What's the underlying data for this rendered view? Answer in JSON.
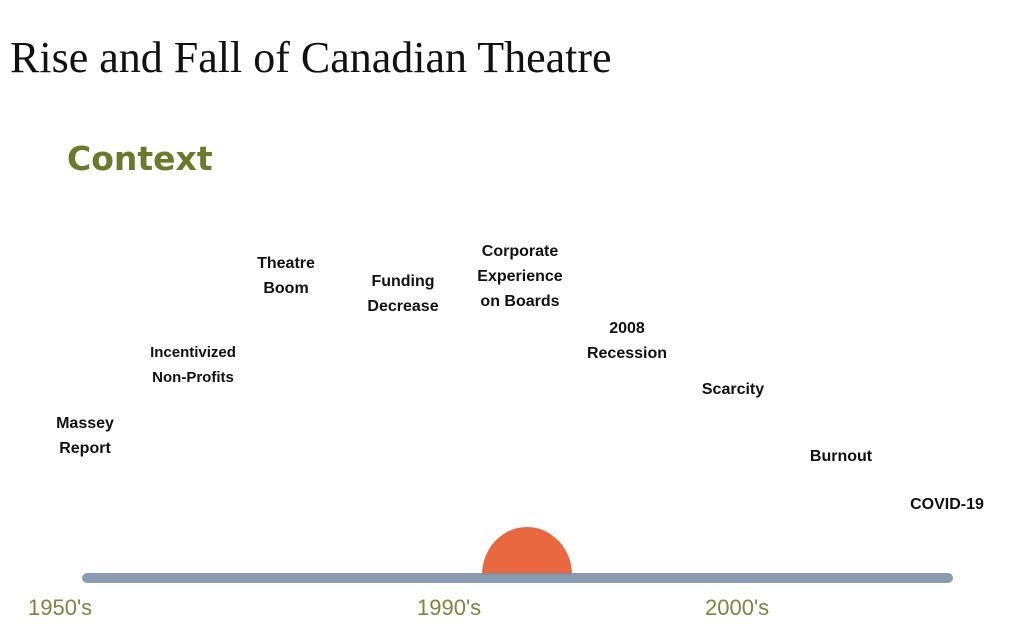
{
  "title": "Rise and Fall of Canadian Theatre",
  "section": "Context",
  "events": [
    {
      "lines": [
        "Massey",
        "Report"
      ]
    },
    {
      "lines": [
        "Incentivized",
        "Non-Profits"
      ]
    },
    {
      "lines": [
        "Theatre",
        "Boom"
      ]
    },
    {
      "lines": [
        "Funding",
        "Decrease"
      ]
    },
    {
      "lines": [
        "Corporate",
        "Experience",
        "on Boards"
      ]
    },
    {
      "lines": [
        "2008",
        "Recession"
      ]
    },
    {
      "lines": [
        "Scarcity"
      ]
    },
    {
      "lines": [
        "Burnout"
      ]
    },
    {
      "lines": [
        "COVID-19"
      ]
    }
  ],
  "decades": [
    "1950's",
    "1990's",
    "2000's"
  ],
  "colors": {
    "accent": "#6b7a2a",
    "timeline": "#7c91a9",
    "sun": "#e8693f",
    "decade": "#7f8440"
  }
}
